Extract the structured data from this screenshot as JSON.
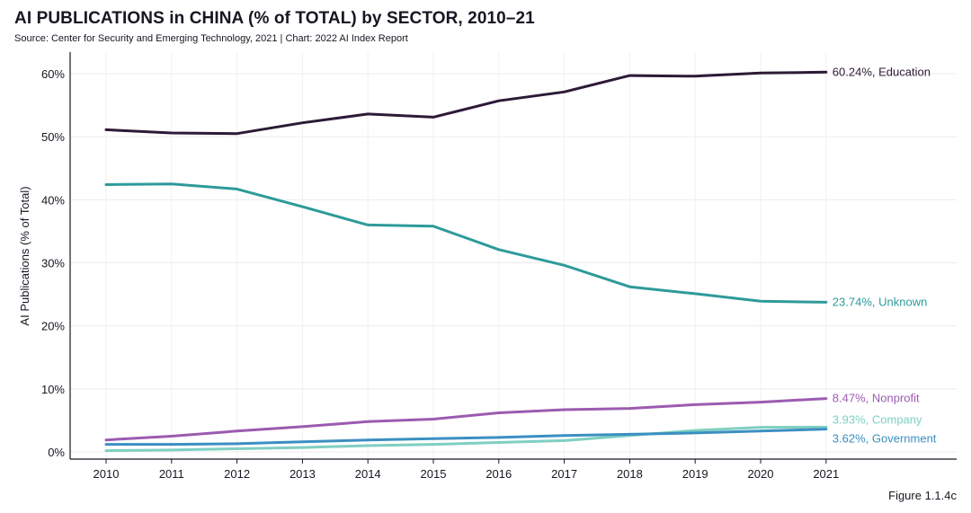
{
  "header": {
    "title": "AI PUBLICATIONS in CHINA (% of TOTAL) by SECTOR, 2010–21",
    "subtitle": "Source: Center for Security and Emerging Technology, 2021 | Chart: 2022 AI Index Report"
  },
  "footer": {
    "figure_label": "Figure 1.1.4c"
  },
  "chart_data": {
    "type": "line",
    "title": "AI PUBLICATIONS in CHINA (% of TOTAL) by SECTOR, 2010–21",
    "xlabel": "",
    "ylabel": "AI Publications (% of Total)",
    "ylim": [
      0,
      63
    ],
    "y_ticks": [
      0,
      10,
      20,
      30,
      40,
      50,
      60
    ],
    "y_tick_labels": [
      "0%",
      "10%",
      "20%",
      "30%",
      "40%",
      "50%",
      "60%"
    ],
    "x": [
      "2010",
      "2011",
      "2012",
      "2013",
      "2014",
      "2015",
      "2016",
      "2017",
      "2018",
      "2019",
      "2020",
      "2021"
    ],
    "grid": true,
    "series": [
      {
        "name": "Education",
        "color": "#2c1a36",
        "end_label": "60.24%, Education",
        "values": [
          51.1,
          50.6,
          50.5,
          52.2,
          53.6,
          53.1,
          55.7,
          57.1,
          59.7,
          59.6,
          60.1,
          60.24
        ]
      },
      {
        "name": "Unknown",
        "color": "#2e9a9a",
        "end_label": "23.74%, Unknown",
        "values": [
          42.4,
          42.5,
          41.7,
          38.9,
          36.0,
          35.8,
          32.1,
          29.6,
          26.2,
          25.1,
          23.9,
          23.74
        ]
      },
      {
        "name": "Nonprofit",
        "color": "#9b5bb0",
        "end_label": "8.47%, Nonprofit",
        "values": [
          1.9,
          2.5,
          3.3,
          4.0,
          4.8,
          5.2,
          6.2,
          6.7,
          6.9,
          7.5,
          7.9,
          8.47
        ]
      },
      {
        "name": "Company",
        "color": "#7fcfc2",
        "end_label": "3.93%, Company",
        "values": [
          0.2,
          0.3,
          0.5,
          0.7,
          1.0,
          1.2,
          1.5,
          1.8,
          2.6,
          3.4,
          3.9,
          3.93
        ]
      },
      {
        "name": "Government",
        "color": "#3b8fc2",
        "end_label": "3.62%, Government",
        "values": [
          1.2,
          1.2,
          1.3,
          1.6,
          1.9,
          2.1,
          2.3,
          2.6,
          2.8,
          3.0,
          3.3,
          3.62
        ]
      }
    ]
  }
}
